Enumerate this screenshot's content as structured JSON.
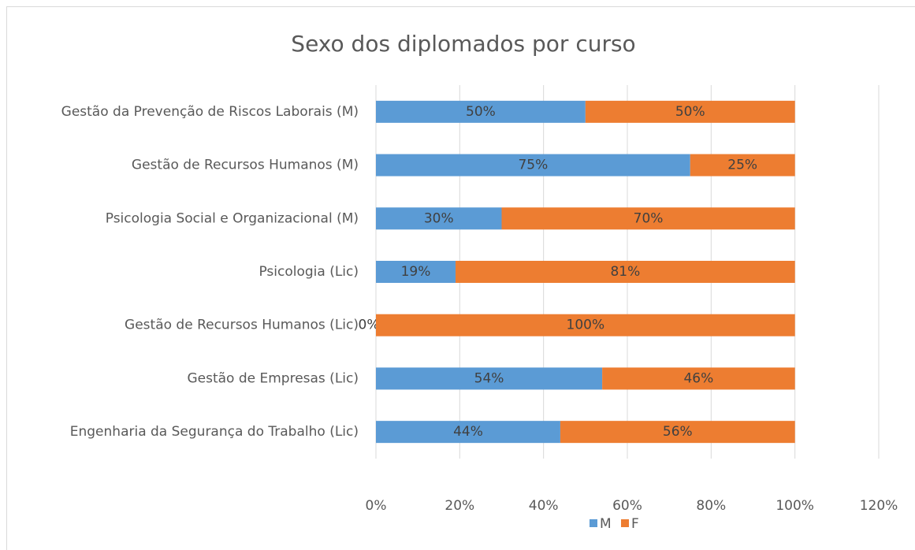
{
  "chart_data": {
    "type": "stacked-bar-horizontal",
    "title": "Sexo dos diplomados por curso",
    "categories": [
      "Gestão da Prevenção de Riscos Laborais (M)",
      "Gestão de Recursos Humanos (M)",
      "Psicologia Social e Organizacional (M)",
      "Psicologia (Lic)",
      "Gestão de Recursos Humanos (Lic)",
      "Gestão de Empresas (Lic)",
      "Engenharia da Segurança do Trabalho (Lic)"
    ],
    "series": [
      {
        "name": "M",
        "color": "#5b9bd5",
        "values": [
          50,
          75,
          30,
          19,
          0,
          54,
          44
        ],
        "value_labels": [
          "50%",
          "75%",
          "30%",
          "19%",
          "0%",
          "54%",
          "44%"
        ]
      },
      {
        "name": "F",
        "color": "#ed7d31",
        "values": [
          50,
          25,
          70,
          81,
          100,
          46,
          56
        ],
        "value_labels": [
          "50%",
          "25%",
          "70%",
          "81%",
          "100%",
          "46%",
          "56%"
        ]
      }
    ],
    "xlim": [
      0,
      120
    ],
    "xticks": [
      {
        "value": 0,
        "label": "0%"
      },
      {
        "value": 20,
        "label": "20%"
      },
      {
        "value": 40,
        "label": "40%"
      },
      {
        "value": 60,
        "label": "60%"
      },
      {
        "value": 80,
        "label": "80%"
      },
      {
        "value": 100,
        "label": "100%"
      },
      {
        "value": 120,
        "label": "120%"
      }
    ],
    "grid": true,
    "legend": "bottom"
  }
}
